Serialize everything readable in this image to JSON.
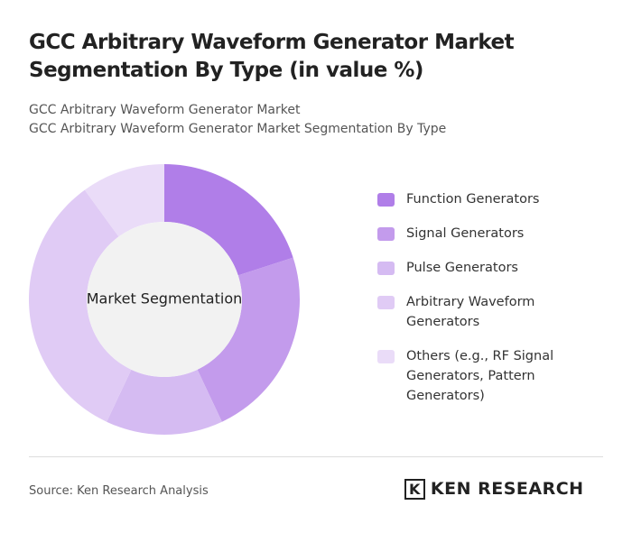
{
  "chart_data": {
    "type": "donut",
    "title": "GCC Arbitrary Waveform Generator Market Segmentation By Type (in value %)",
    "subtitle": "GCC Arbitrary Waveform Generator Market",
    "subtitle2": "GCC Arbitrary Waveform Generator Market Segmentation By Type",
    "center_label": "Market Segmentation",
    "categories": [
      "Function Generators",
      "Signal Generators",
      "Pulse Generators",
      "Arbitrary Waveform Generators",
      "Others (e.g., RF Signal Generators, Pattern Generators)"
    ],
    "values": [
      20,
      23,
      14,
      33,
      10
    ],
    "colors": [
      "#b07ee8",
      "#c39bec",
      "#d5bbf2",
      "#e0cbf5",
      "#eadcf8"
    ]
  },
  "source": "Source: Ken Research Analysis",
  "logo": "KEN RESEARCH"
}
